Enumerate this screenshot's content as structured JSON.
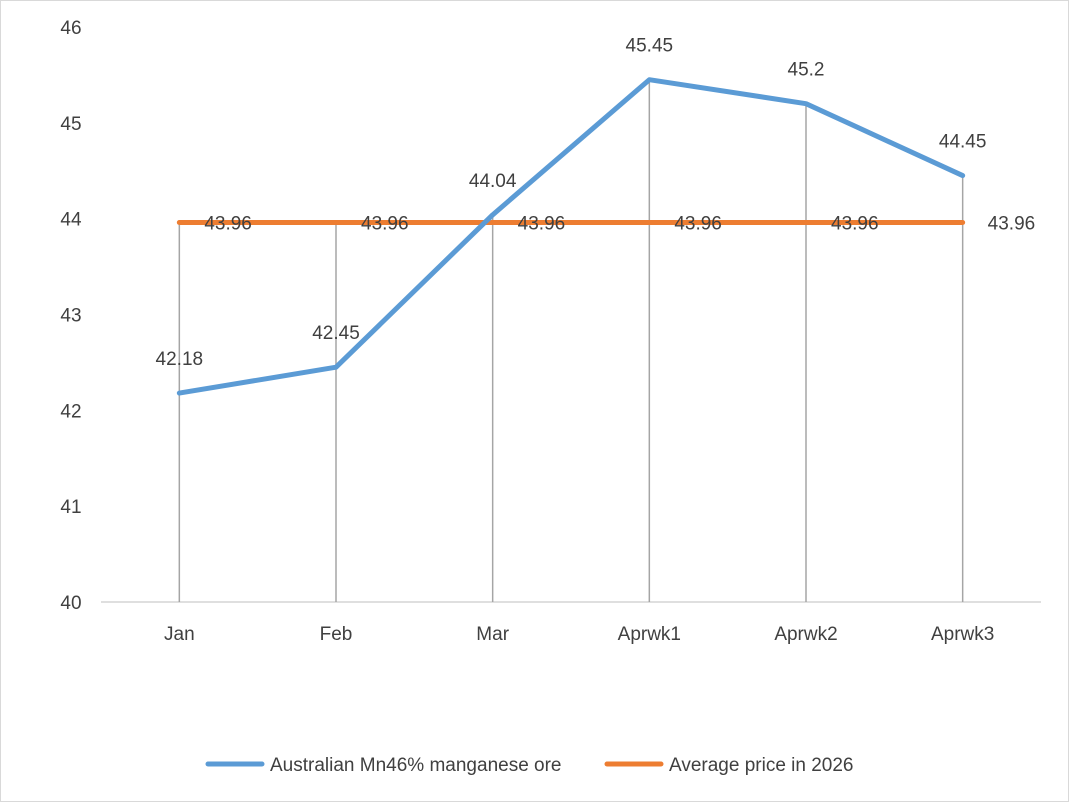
{
  "chart_data": {
    "type": "line",
    "title": "",
    "xlabel": "",
    "ylabel": "",
    "categories": [
      "Jan",
      "Feb",
      "Mar",
      "Aprwk1",
      "Aprwk2",
      "Aprwk3"
    ],
    "ylim": [
      40,
      46
    ],
    "yticks": [
      "40",
      "41",
      "42",
      "43",
      "44",
      "45",
      "46"
    ],
    "grid": false,
    "drop_lines": true,
    "legend_position": "bottom",
    "series": [
      {
        "name": "Australian Mn46% manganese ore",
        "color": "#5b9bd5",
        "values": [
          42.18,
          42.45,
          44.04,
          45.45,
          45.2,
          44.45
        ],
        "labels": [
          "42.18",
          "42.45",
          "44.04",
          "45.45",
          "45.2",
          "44.45"
        ]
      },
      {
        "name": "Average price in 2026",
        "color": "#ed7d31",
        "values": [
          43.96,
          43.96,
          43.96,
          43.96,
          43.96,
          43.96
        ],
        "labels": [
          "43.96",
          "43.96",
          "43.96",
          "43.96",
          "43.96",
          "43.96"
        ]
      }
    ]
  }
}
